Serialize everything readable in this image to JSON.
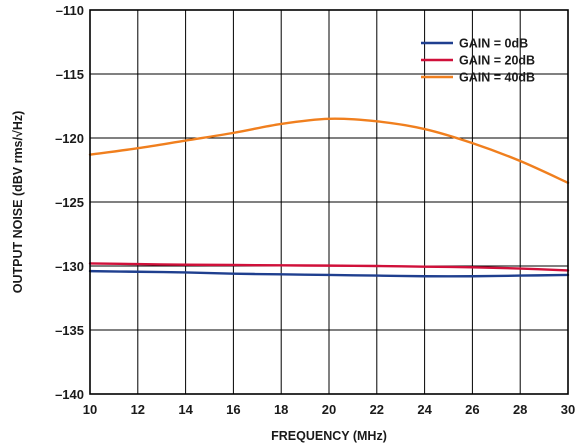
{
  "chart_data": {
    "type": "line",
    "xlabel": "FREQUENCY (MHz)",
    "ylabel": "OUTPUT NOISE (dBV rms/√Hz)",
    "xlim": [
      10,
      30
    ],
    "ylim": [
      -140,
      -110
    ],
    "xticks": [
      10,
      12,
      14,
      16,
      18,
      20,
      22,
      24,
      26,
      28,
      30
    ],
    "yticks": [
      -110,
      -115,
      -120,
      -125,
      -130,
      -135,
      -140
    ],
    "xtick_labels": [
      "10",
      "12",
      "14",
      "16",
      "18",
      "20",
      "22",
      "24",
      "26",
      "28",
      "30"
    ],
    "ytick_labels": [
      "–110",
      "–115",
      "–120",
      "–125",
      "–130",
      "–135",
      "–140"
    ],
    "grid": true,
    "legend_position": "top-right",
    "series": [
      {
        "name": "GAIN = 0dB",
        "color": "#1f3f8f",
        "x": [
          10,
          12,
          14,
          16,
          18,
          20,
          22,
          24,
          26,
          28,
          30
        ],
        "y": [
          -130.4,
          -130.45,
          -130.5,
          -130.6,
          -130.65,
          -130.7,
          -130.75,
          -130.8,
          -130.8,
          -130.75,
          -130.7
        ]
      },
      {
        "name": "GAIN = 20dB",
        "color": "#d0103a",
        "x": [
          10,
          12,
          14,
          16,
          18,
          20,
          22,
          24,
          26,
          28,
          30
        ],
        "y": [
          -129.8,
          -129.85,
          -129.9,
          -129.92,
          -129.95,
          -129.97,
          -130.0,
          -130.05,
          -130.1,
          -130.2,
          -130.35
        ]
      },
      {
        "name": "GAIN = 40dB",
        "color": "#f07f1e",
        "x": [
          10,
          12,
          14,
          16,
          18,
          20,
          22,
          24,
          26,
          28,
          30
        ],
        "y": [
          -121.3,
          -120.8,
          -120.2,
          -119.6,
          -118.9,
          -118.5,
          -118.7,
          -119.3,
          -120.4,
          -121.8,
          -123.5
        ]
      }
    ]
  }
}
